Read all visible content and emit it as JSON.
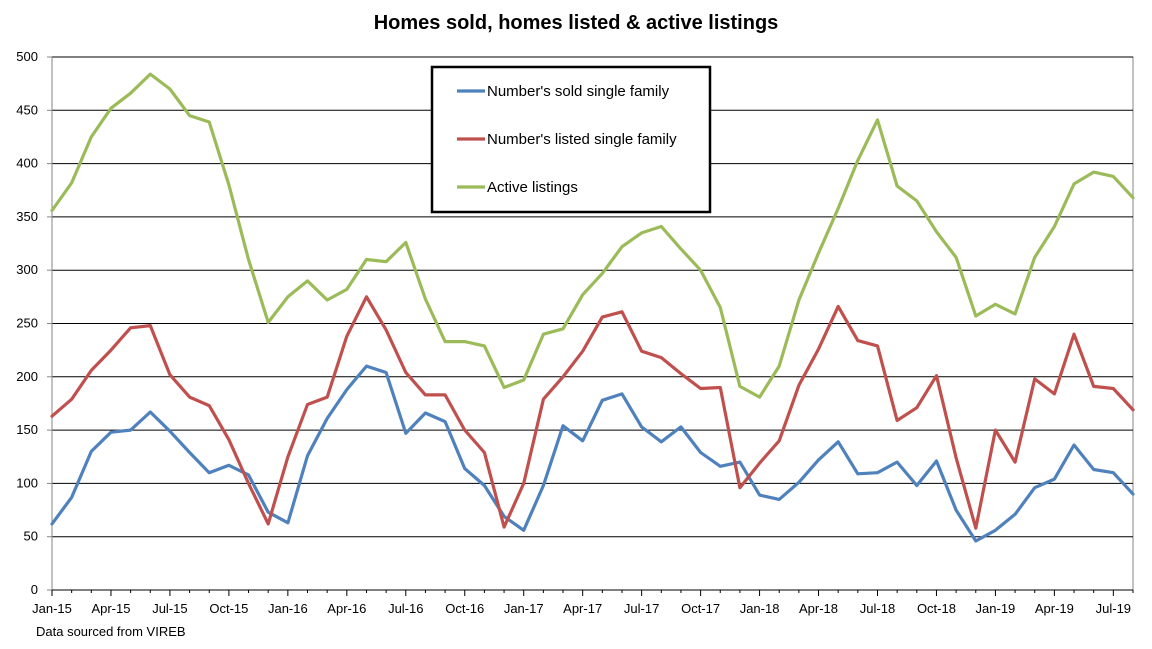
{
  "chart_data": {
    "type": "line",
    "title": "Homes sold, homes listed & active listings",
    "xlabel": "",
    "ylabel": "",
    "ylim": [
      0,
      500
    ],
    "y_ticks": [
      0,
      50,
      100,
      150,
      200,
      250,
      300,
      350,
      400,
      450,
      500
    ],
    "grid": true,
    "legend_position": "top-center",
    "x": [
      "Jan-15",
      "Feb-15",
      "Mar-15",
      "Apr-15",
      "May-15",
      "Jun-15",
      "Jul-15",
      "Aug-15",
      "Sep-15",
      "Oct-15",
      "Nov-15",
      "Dec-15",
      "Jan-16",
      "Feb-16",
      "Mar-16",
      "Apr-16",
      "May-16",
      "Jun-16",
      "Jul-16",
      "Aug-16",
      "Sep-16",
      "Oct-16",
      "Nov-16",
      "Dec-16",
      "Jan-17",
      "Feb-17",
      "Mar-17",
      "Apr-17",
      "May-17",
      "Jun-17",
      "Jul-17",
      "Aug-17",
      "Sep-17",
      "Oct-17",
      "Nov-17",
      "Dec-17",
      "Jan-18",
      "Feb-18",
      "Mar-18",
      "Apr-18",
      "May-18",
      "Jun-18",
      "Jul-18",
      "Aug-18",
      "Sep-18",
      "Oct-18",
      "Nov-18",
      "Dec-18",
      "Jan-19",
      "Feb-19",
      "Mar-19",
      "Apr-19",
      "May-19",
      "Jun-19",
      "Jul-19",
      "Aug-19"
    ],
    "x_tick_labels": [
      "Jan-15",
      "Apr-15",
      "Jul-15",
      "Oct-15",
      "Jan-16",
      "Apr-16",
      "Jul-16",
      "Oct-16",
      "Jan-17",
      "Apr-17",
      "Jul-17",
      "Oct-17",
      "Jan-18",
      "Apr-18",
      "Jul-18",
      "Oct-18",
      "Jan-19",
      "Apr-19",
      "Jul-19"
    ],
    "series": [
      {
        "name": "Number's sold single family",
        "color": "#4F81BD",
        "values": [
          62,
          87,
          130,
          148,
          150,
          167,
          149,
          129,
          110,
          117,
          108,
          73,
          63,
          126,
          161,
          188,
          210,
          204,
          147,
          166,
          158,
          114,
          98,
          69,
          56,
          98,
          154,
          140,
          178,
          184,
          153,
          139,
          153,
          129,
          116,
          120,
          89,
          85,
          101,
          122,
          139,
          109,
          110,
          120,
          98,
          121,
          75,
          46,
          56,
          71,
          96,
          104,
          136,
          113,
          110,
          90
        ]
      },
      {
        "name": "Number's listed single family",
        "color": "#C0504D",
        "values": [
          163,
          179,
          206,
          225,
          246,
          248,
          202,
          181,
          173,
          141,
          100,
          62,
          125,
          174,
          181,
          238,
          275,
          244,
          204,
          183,
          183,
          150,
          129,
          59,
          100,
          179,
          200,
          224,
          256,
          261,
          224,
          218,
          203,
          189,
          190,
          96,
          119,
          140,
          192,
          226,
          266,
          234,
          229,
          159,
          171,
          201,
          124,
          58,
          150,
          120,
          198,
          184,
          240,
          191,
          189,
          169
        ]
      },
      {
        "name": "Active listings",
        "color": "#9BBB59",
        "values": [
          356,
          382,
          425,
          452,
          466,
          484,
          470,
          445,
          439,
          380,
          310,
          251,
          275,
          290,
          272,
          282,
          310,
          308,
          326,
          273,
          233,
          233,
          229,
          190,
          197,
          240,
          245,
          277,
          297,
          322,
          335,
          341,
          320,
          300,
          265,
          191,
          181,
          210,
          272,
          316,
          358,
          403,
          441,
          379,
          365,
          336,
          312,
          257,
          268,
          259,
          312,
          341,
          381,
          392,
          388,
          368
        ]
      }
    ]
  },
  "source_note": "Data sourced from VIREB"
}
